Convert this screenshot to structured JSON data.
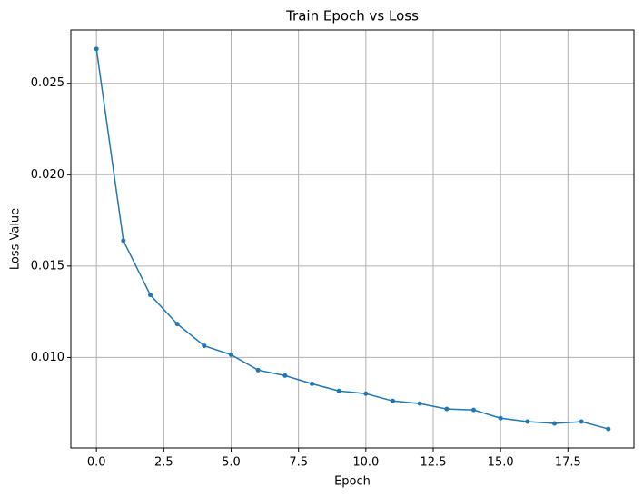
{
  "chart_data": {
    "type": "line",
    "title": "Train Epoch vs Loss",
    "x_label": "Epoch",
    "y_label": "Loss Value",
    "x": [
      0,
      1,
      2,
      3,
      4,
      5,
      6,
      7,
      8,
      9,
      10,
      11,
      12,
      13,
      14,
      15,
      16,
      17,
      18,
      19
    ],
    "series": [
      {
        "color": "#1f77b4",
        "values": [
          0.02688,
          0.01639,
          0.01342,
          0.01183,
          0.01064,
          0.01015,
          0.00931,
          0.00901,
          0.00856,
          0.00817,
          0.00802,
          0.00762,
          0.00748,
          0.00718,
          0.00713,
          0.00668,
          0.00649,
          0.00639,
          0.00649,
          0.00609
        ]
      }
    ],
    "xlim": [
      -0.95,
      19.95
    ],
    "xticks": [
      {
        "value": 0,
        "label": "0.0"
      },
      2.5,
      {
        "value": 5,
        "label": "5.0"
      },
      7.5,
      {
        "value": 10,
        "label": "10.0"
      },
      12.5,
      {
        "value": 15,
        "label": "15.0"
      },
      17.5
    ],
    "ylim": [
      0.00505,
      0.02792
    ],
    "yticks": [
      {
        "value": 0.01,
        "label": "0.010"
      },
      0.015,
      {
        "value": 0.02,
        "label": "0.020"
      },
      0.025
    ],
    "grid": true
  }
}
